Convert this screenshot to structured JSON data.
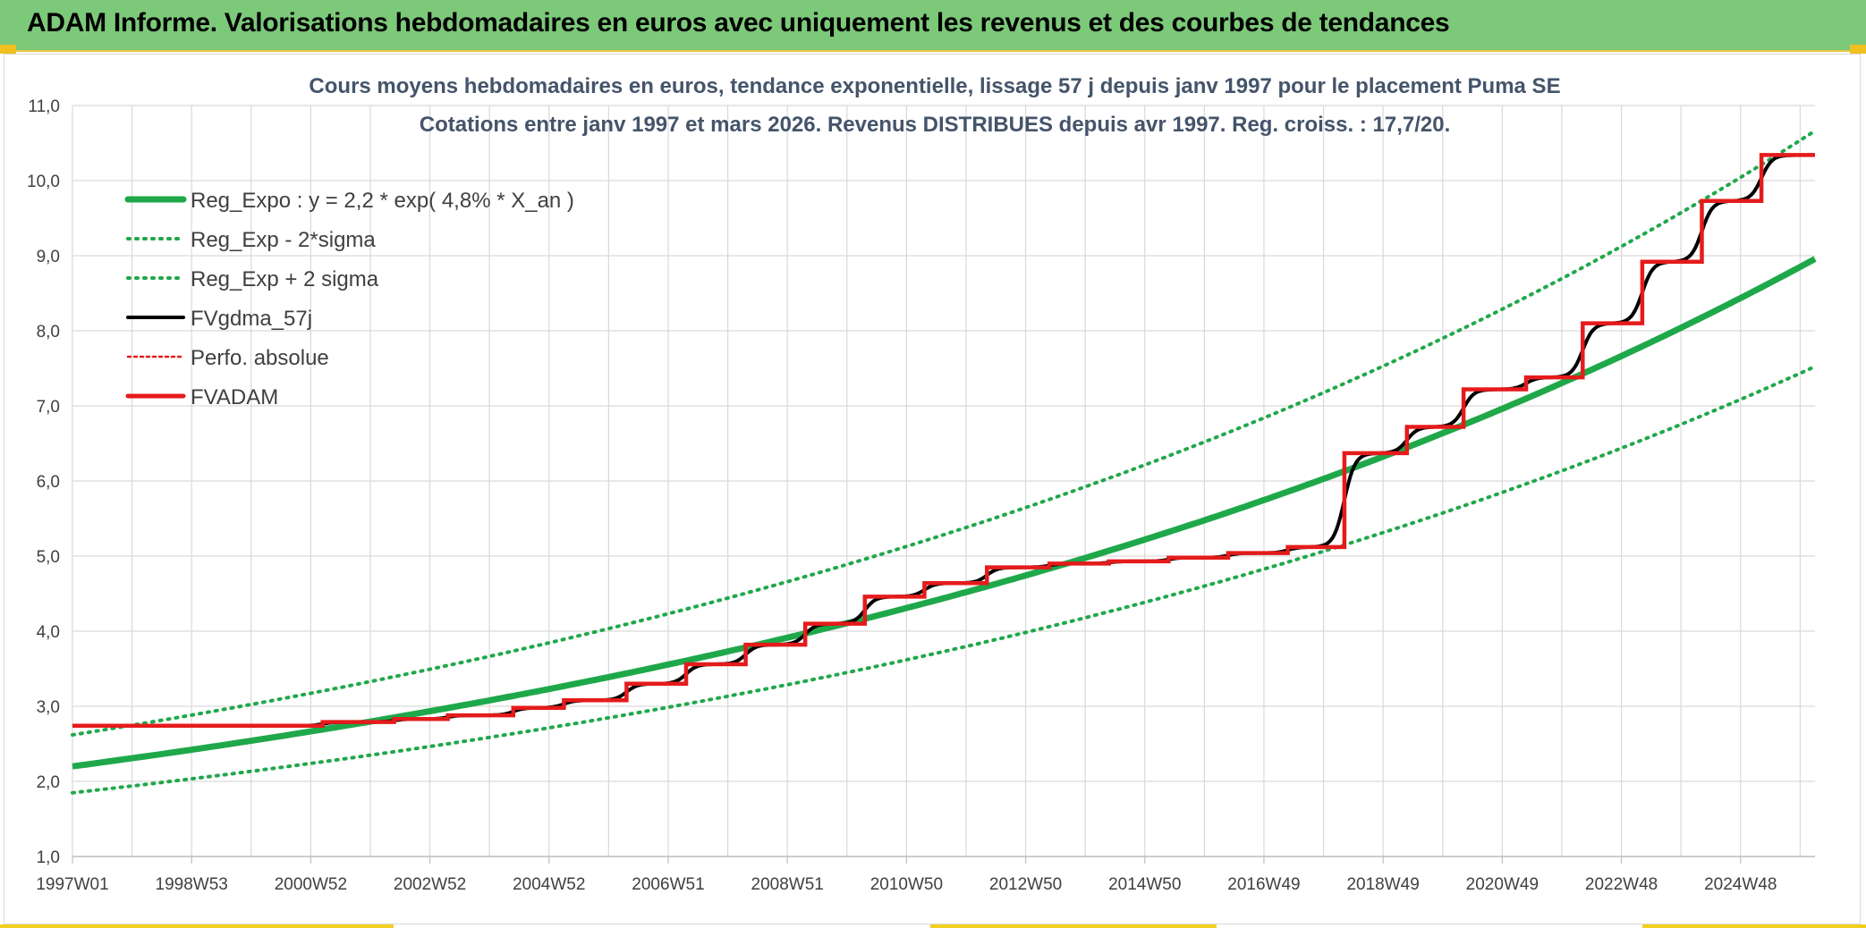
{
  "banner": {
    "title": "ADAM Informe. Valorisations hebdomadaires en euros avec uniquement les revenus et des courbes de tendances"
  },
  "colors": {
    "banner_bg": "#7dc97a",
    "reg_expo": "#1fa84a",
    "fvgdma": "#000000",
    "fvadam": "#e51b1b",
    "perfo": "#e51b1b",
    "title_text": "#44546a",
    "grid": "#d9d9d9"
  },
  "chart_data": {
    "type": "line",
    "title": "Cours moyens hebdomadaires en euros, tendance exponentielle, lissage 57 j depuis janv 1997 pour le placement Puma SE",
    "subtitle": "Cotations entre janv 1997 et mars 2026. Revenus DISTRIBUES depuis avr 1997. Reg. croiss. : 17,7/20.",
    "xlabel": "",
    "ylabel": "",
    "x_range": [
      1997.0,
      2026.25
    ],
    "ylim": [
      1.0,
      11.0
    ],
    "y_ticks": [
      "1,0",
      "2,0",
      "3,0",
      "4,0",
      "5,0",
      "6,0",
      "7,0",
      "8,0",
      "9,0",
      "10,0",
      "11,0"
    ],
    "x_ticks": [
      {
        "label": "1997W01",
        "year": 1997.0
      },
      {
        "label": "1998W53",
        "year": 1999.0
      },
      {
        "label": "2000W52",
        "year": 2001.0
      },
      {
        "label": "2002W52",
        "year": 2003.0
      },
      {
        "label": "2004W52",
        "year": 2005.0
      },
      {
        "label": "2006W51",
        "year": 2007.0
      },
      {
        "label": "2008W51",
        "year": 2009.0
      },
      {
        "label": "2010W50",
        "year": 2011.0
      },
      {
        "label": "2012W50",
        "year": 2013.0
      },
      {
        "label": "2014W50",
        "year": 2015.0
      },
      {
        "label": "2016W49",
        "year": 2017.0
      },
      {
        "label": "2018W49",
        "year": 2019.0
      },
      {
        "label": "2020W49",
        "year": 2021.0
      },
      {
        "label": "2022W48",
        "year": 2023.0
      },
      {
        "label": "2024W48",
        "year": 2025.0
      }
    ],
    "grid": true,
    "legend_position": "top-left",
    "regression": {
      "a": 2.2,
      "rate": 0.048,
      "sigma_factor": 0.84,
      "x0": 1997.0
    },
    "series": [
      {
        "name": "Reg_Expo : y = 2,2 * exp( 4,8% *  X_an )",
        "style": "solid-thick",
        "color": "#1fa84a"
      },
      {
        "name": "Reg_Exp - 2*sigma",
        "style": "dotted",
        "color": "#1fa84a"
      },
      {
        "name": "Reg_Exp + 2 sigma",
        "style": "dotted",
        "color": "#1fa84a"
      },
      {
        "name": "FVgdma_57j",
        "style": "solid",
        "color": "#000000"
      },
      {
        "name": "Perfo. absolue",
        "style": "dotted-thin",
        "color": "#e51b1b"
      },
      {
        "name": "FVADAM",
        "style": "step",
        "color": "#e51b1b"
      }
    ],
    "fvadam_steps": [
      {
        "x": 1997.0,
        "y": 2.74
      },
      {
        "x": 2001.2,
        "y": 2.79
      },
      {
        "x": 2002.4,
        "y": 2.83
      },
      {
        "x": 2003.3,
        "y": 2.88
      },
      {
        "x": 2004.4,
        "y": 2.98
      },
      {
        "x": 2005.25,
        "y": 3.08
      },
      {
        "x": 2006.3,
        "y": 3.3
      },
      {
        "x": 2007.3,
        "y": 3.56
      },
      {
        "x": 2008.3,
        "y": 3.82
      },
      {
        "x": 2009.3,
        "y": 4.1
      },
      {
        "x": 2010.3,
        "y": 4.46
      },
      {
        "x": 2011.3,
        "y": 4.64
      },
      {
        "x": 2012.35,
        "y": 4.85
      },
      {
        "x": 2013.4,
        "y": 4.9
      },
      {
        "x": 2014.4,
        "y": 4.93
      },
      {
        "x": 2015.4,
        "y": 4.98
      },
      {
        "x": 2016.4,
        "y": 5.04
      },
      {
        "x": 2017.4,
        "y": 5.12
      },
      {
        "x": 2018.35,
        "y": 6.37
      },
      {
        "x": 2019.4,
        "y": 6.72
      },
      {
        "x": 2020.35,
        "y": 7.22
      },
      {
        "x": 2021.4,
        "y": 7.38
      },
      {
        "x": 2022.35,
        "y": 8.1
      },
      {
        "x": 2023.35,
        "y": 8.92
      },
      {
        "x": 2024.35,
        "y": 9.73
      },
      {
        "x": 2025.35,
        "y": 10.34
      },
      {
        "x": 2026.25,
        "y": 10.34
      }
    ]
  }
}
